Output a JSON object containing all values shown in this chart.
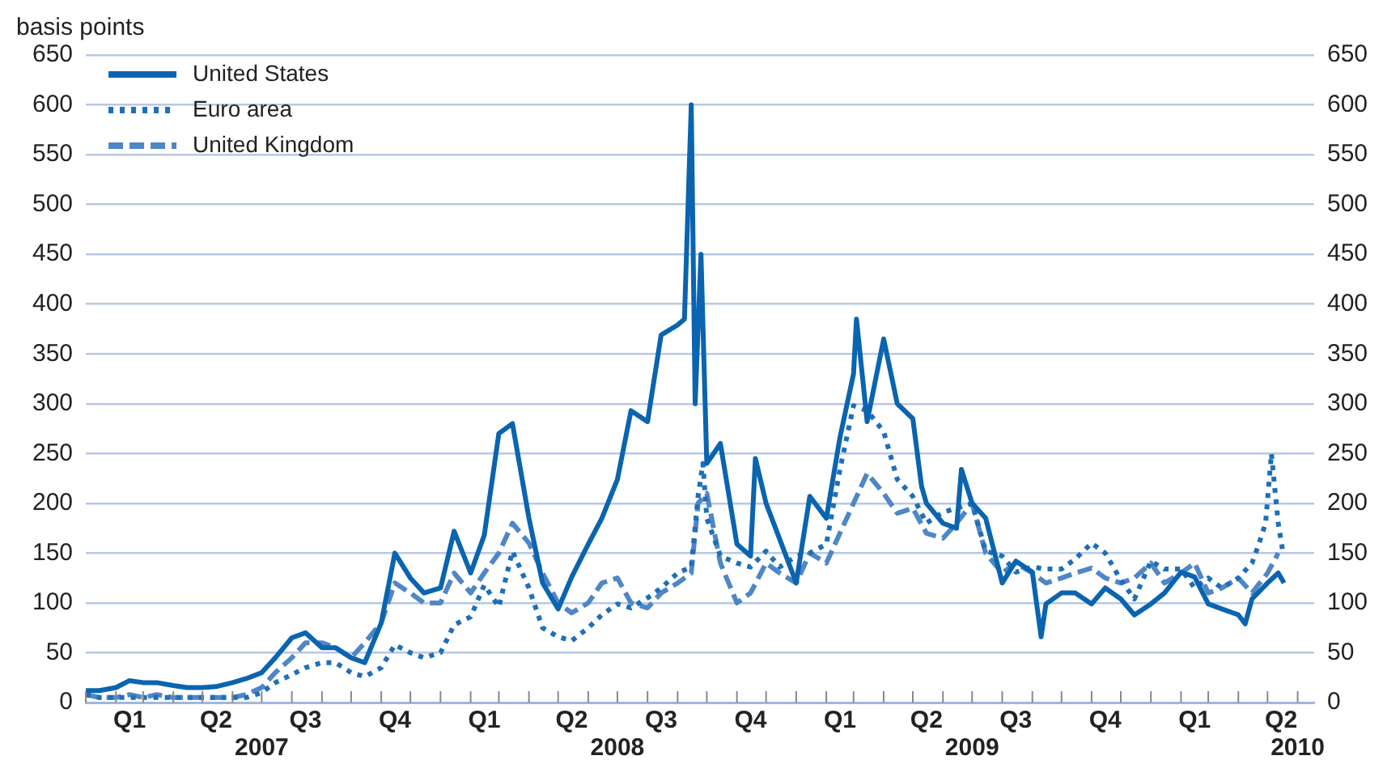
{
  "chart_data": {
    "type": "line",
    "ylabel": "basis points",
    "legend": "top left",
    "grid": "y",
    "xlim": [
      "2007-01-01",
      "2010-06-18"
    ],
    "xticks": [
      {
        "value": "2007-01-01",
        "label": null
      },
      {
        "value": "2007-02-01",
        "label": null
      },
      {
        "value": "2007-03-01",
        "label": null
      },
      {
        "value": "2007-04-01",
        "label": null
      },
      {
        "value": "2007-05-01",
        "label": null
      },
      {
        "value": "2007-06-01",
        "label": null
      },
      {
        "value": "2007-07-01",
        "label": null
      },
      {
        "value": "2007-08-01",
        "label": null
      },
      {
        "value": "2007-09-01",
        "label": null
      },
      {
        "value": "2007-10-01",
        "label": null
      },
      {
        "value": "2007-11-01",
        "label": null
      },
      {
        "value": "2007-12-01",
        "label": null
      },
      {
        "value": "2008-01-01",
        "label": null
      },
      {
        "value": "2008-02-01",
        "label": null
      },
      {
        "value": "2008-03-01",
        "label": null
      },
      {
        "value": "2008-04-01",
        "label": null
      },
      {
        "value": "2008-05-01",
        "label": null
      },
      {
        "value": "2008-06-01",
        "label": null
      },
      {
        "value": "2008-07-01",
        "label": null
      },
      {
        "value": "2008-08-01",
        "label": null
      },
      {
        "value": "2008-09-01",
        "label": null
      },
      {
        "value": "2008-10-01",
        "label": null
      },
      {
        "value": "2008-11-01",
        "label": null
      },
      {
        "value": "2008-12-01",
        "label": null
      },
      {
        "value": "2009-01-01",
        "label": null
      },
      {
        "value": "2009-02-01",
        "label": null
      },
      {
        "value": "2009-03-01",
        "label": null
      },
      {
        "value": "2009-04-01",
        "label": null
      },
      {
        "value": "2009-05-01",
        "label": null
      },
      {
        "value": "2009-06-01",
        "label": null
      },
      {
        "value": "2009-07-01",
        "label": null
      },
      {
        "value": "2009-08-01",
        "label": null
      },
      {
        "value": "2009-09-01",
        "label": null
      },
      {
        "value": "2009-10-01",
        "label": null
      },
      {
        "value": "2009-11-01",
        "label": null
      },
      {
        "value": "2009-12-01",
        "label": null
      },
      {
        "value": "2010-01-01",
        "label": null
      },
      {
        "value": "2010-02-01",
        "label": null
      },
      {
        "value": "2010-03-01",
        "label": null
      },
      {
        "value": "2010-04-01",
        "label": null
      },
      {
        "value": "2010-05-01",
        "label": null
      },
      {
        "value": "2010-06-01",
        "label": null
      },
      {
        "value": "2007-02-15",
        "label": "Q1"
      },
      {
        "value": "2007-05-15",
        "label": "Q2"
      },
      {
        "value": "2007-08-15",
        "label": "Q3"
      },
      {
        "value": "2007-11-15",
        "label": "Q4"
      },
      {
        "value": "2008-02-15",
        "label": "Q1"
      },
      {
        "value": "2008-05-15",
        "label": "Q2"
      },
      {
        "value": "2008-08-15",
        "label": "Q3"
      },
      {
        "value": "2008-11-15",
        "label": "Q4"
      },
      {
        "value": "2009-02-15",
        "label": "Q1"
      },
      {
        "value": "2009-05-15",
        "label": "Q2"
      },
      {
        "value": "2009-08-15",
        "label": "Q3"
      },
      {
        "value": "2009-11-15",
        "label": "Q4"
      },
      {
        "value": "2010-02-15",
        "label": "Q1"
      },
      {
        "value": "2010-05-15",
        "label": "Q2"
      }
    ],
    "x2lim": [
      "2007-01-01",
      "2010-06-18"
    ],
    "x2ticks": [
      {
        "value": "2007-07-01",
        "label": "2007"
      },
      {
        "value": "2008-07-01",
        "label": "2008"
      },
      {
        "value": "2009-07-01",
        "label": "2009"
      },
      {
        "value": "2010-06-01",
        "label": "2010"
      }
    ],
    "ylim": [
      0,
      650
    ],
    "yticks": [
      0,
      50,
      100,
      150,
      200,
      250,
      300,
      350,
      400,
      450,
      500,
      550,
      600,
      650
    ],
    "y2lim": [
      0,
      650
    ],
    "y2ticks": [
      0,
      50,
      100,
      150,
      200,
      250,
      300,
      350,
      400,
      450,
      500,
      550,
      600,
      650
    ],
    "series": [
      {
        "name": "United States",
        "color": "#0a64b0",
        "line_style": "solid",
        "x": [
          "2007-01-01",
          "2007-01-15",
          "2007-02-01",
          "2007-02-15",
          "2007-03-01",
          "2007-03-15",
          "2007-04-01",
          "2007-04-15",
          "2007-05-01",
          "2007-05-15",
          "2007-06-01",
          "2007-06-15",
          "2007-07-01",
          "2007-07-15",
          "2007-08-01",
          "2007-08-15",
          "2007-09-01",
          "2007-09-15",
          "2007-10-01",
          "2007-10-15",
          "2007-11-01",
          "2007-11-15",
          "2007-12-01",
          "2007-12-15",
          "2008-01-01",
          "2008-01-15",
          "2008-02-01",
          "2008-02-15",
          "2008-03-01",
          "2008-03-15",
          "2008-04-01",
          "2008-04-15",
          "2008-05-01",
          "2008-05-15",
          "2008-06-01",
          "2008-06-15",
          "2008-07-01",
          "2008-07-15",
          "2008-08-01",
          "2008-08-15",
          "2008-09-01",
          "2008-09-08",
          "2008-09-15",
          "2008-09-19",
          "2008-09-25",
          "2008-10-01",
          "2008-10-15",
          "2008-11-01",
          "2008-11-15",
          "2008-11-20",
          "2008-12-01",
          "2008-12-15",
          "2009-01-01",
          "2009-01-15",
          "2009-02-01",
          "2009-02-15",
          "2009-03-01",
          "2009-03-04",
          "2009-03-15",
          "2009-04-01",
          "2009-04-15",
          "2009-05-01",
          "2009-05-10",
          "2009-05-15",
          "2009-06-01",
          "2009-06-15",
          "2009-06-20",
          "2009-07-01",
          "2009-07-15",
          "2009-08-01",
          "2009-08-15",
          "2009-09-01",
          "2009-09-10",
          "2009-09-15",
          "2009-10-01",
          "2009-10-15",
          "2009-11-01",
          "2009-11-15",
          "2009-12-01",
          "2009-12-15",
          "2010-01-01",
          "2010-01-15",
          "2010-02-01",
          "2010-02-15",
          "2010-03-01",
          "2010-03-15",
          "2010-04-01",
          "2010-04-08",
          "2010-04-15",
          "2010-05-01",
          "2010-05-12",
          "2010-05-18"
        ],
        "values": [
          12,
          12,
          15,
          22,
          20,
          20,
          17,
          15,
          15,
          16,
          20,
          24,
          30,
          45,
          65,
          70,
          55,
          55,
          45,
          40,
          80,
          150,
          125,
          110,
          115,
          172,
          130,
          168,
          270,
          280,
          185,
          120,
          94,
          126,
          159,
          185,
          224,
          293,
          282,
          369,
          379,
          385,
          600,
          300,
          450,
          240,
          260,
          159,
          147,
          245,
          200,
          164,
          120,
          207,
          185,
          266,
          330,
          385,
          282,
          365,
          300,
          285,
          217,
          200,
          180,
          175,
          234,
          200,
          185,
          120,
          142,
          131,
          66,
          99,
          110,
          110,
          99,
          115,
          104,
          88,
          99,
          110,
          131,
          126,
          99,
          94,
          88,
          79,
          104,
          120,
          130,
          120
        ]
      },
      {
        "name": "Euro area",
        "color": "#1f6fb8",
        "line_style": "dotted",
        "x": [
          "2007-01-01",
          "2007-01-15",
          "2007-02-01",
          "2007-02-15",
          "2007-03-01",
          "2007-03-15",
          "2007-04-01",
          "2007-04-15",
          "2007-05-01",
          "2007-05-15",
          "2007-06-01",
          "2007-06-15",
          "2007-07-01",
          "2007-07-15",
          "2007-08-01",
          "2007-08-15",
          "2007-09-01",
          "2007-09-15",
          "2007-10-01",
          "2007-10-15",
          "2007-11-01",
          "2007-11-15",
          "2007-12-01",
          "2007-12-15",
          "2008-01-01",
          "2008-01-15",
          "2008-02-01",
          "2008-02-15",
          "2008-03-01",
          "2008-03-15",
          "2008-04-01",
          "2008-04-15",
          "2008-05-01",
          "2008-05-15",
          "2008-06-01",
          "2008-06-15",
          "2008-07-01",
          "2008-07-15",
          "2008-08-01",
          "2008-08-15",
          "2008-09-01",
          "2008-09-15",
          "2008-09-22",
          "2008-09-27",
          "2008-10-01",
          "2008-10-15",
          "2008-11-01",
          "2008-11-15",
          "2008-12-01",
          "2008-12-15",
          "2009-01-01",
          "2009-01-15",
          "2009-02-01",
          "2009-02-15",
          "2009-03-01",
          "2009-03-15",
          "2009-04-01",
          "2009-04-15",
          "2009-05-01",
          "2009-05-15",
          "2009-06-01",
          "2009-06-15",
          "2009-07-01",
          "2009-07-15",
          "2009-08-01",
          "2009-08-15",
          "2009-09-01",
          "2009-09-15",
          "2009-10-01",
          "2009-10-15",
          "2009-11-01",
          "2009-11-15",
          "2009-12-01",
          "2009-12-15",
          "2010-01-01",
          "2010-01-15",
          "2010-02-01",
          "2010-02-15",
          "2010-03-01",
          "2010-03-15",
          "2010-04-01",
          "2010-04-15",
          "2010-04-22",
          "2010-04-29",
          "2010-05-05",
          "2010-05-12",
          "2010-05-17"
        ],
        "values": [
          8,
          5,
          5,
          5,
          5,
          5,
          5,
          5,
          5,
          5,
          5,
          5,
          10,
          20,
          28,
          35,
          40,
          40,
          30,
          26,
          35,
          58,
          50,
          45,
          50,
          78,
          86,
          118,
          96,
          152,
          115,
          75,
          66,
          62,
          75,
          88,
          99,
          95,
          105,
          115,
          130,
          136,
          207,
          240,
          185,
          147,
          140,
          136,
          152,
          136,
          147,
          150,
          159,
          234,
          298,
          293,
          272,
          224,
          207,
          180,
          191,
          195,
          200,
          152,
          147,
          131,
          136,
          134,
          134,
          144,
          160,
          150,
          123,
          104,
          142,
          134,
          134,
          115,
          125,
          115,
          125,
          140,
          159,
          180,
          250,
          180,
          150
        ]
      },
      {
        "name": "United Kingdom",
        "color": "#4f86c6",
        "line_style": "dashed",
        "x": [
          "2007-01-01",
          "2007-01-15",
          "2007-02-01",
          "2007-02-15",
          "2007-03-01",
          "2007-03-15",
          "2007-04-01",
          "2007-04-15",
          "2007-05-01",
          "2007-05-15",
          "2007-06-01",
          "2007-06-15",
          "2007-07-01",
          "2007-07-15",
          "2007-08-01",
          "2007-08-15",
          "2007-09-01",
          "2007-09-15",
          "2007-10-01",
          "2007-10-15",
          "2007-11-01",
          "2007-11-15",
          "2007-12-01",
          "2007-12-15",
          "2008-01-01",
          "2008-01-15",
          "2008-02-01",
          "2008-02-15",
          "2008-03-01",
          "2008-03-15",
          "2008-04-01",
          "2008-04-15",
          "2008-05-01",
          "2008-05-15",
          "2008-06-01",
          "2008-06-15",
          "2008-07-01",
          "2008-07-15",
          "2008-08-01",
          "2008-08-15",
          "2008-09-01",
          "2008-09-15",
          "2008-09-22",
          "2008-10-01",
          "2008-10-15",
          "2008-11-01",
          "2008-11-15",
          "2008-12-01",
          "2008-12-15",
          "2009-01-01",
          "2009-01-15",
          "2009-02-01",
          "2009-02-15",
          "2009-03-01",
          "2009-03-15",
          "2009-04-01",
          "2009-04-15",
          "2009-05-01",
          "2009-05-15",
          "2009-06-01",
          "2009-06-15",
          "2009-07-01",
          "2009-07-15",
          "2009-08-01",
          "2009-08-15",
          "2009-09-01",
          "2009-09-15",
          "2009-10-01",
          "2009-10-15",
          "2009-11-01",
          "2009-11-15",
          "2009-12-01",
          "2009-12-15",
          "2010-01-01",
          "2010-01-15",
          "2010-02-01",
          "2010-02-15",
          "2010-03-01",
          "2010-03-15",
          "2010-04-01",
          "2010-04-15",
          "2010-05-01",
          "2010-05-12"
        ],
        "values": [
          8,
          5,
          5,
          8,
          5,
          8,
          5,
          5,
          5,
          5,
          5,
          8,
          15,
          30,
          45,
          60,
          60,
          55,
          45,
          60,
          80,
          120,
          110,
          100,
          100,
          130,
          110,
          130,
          150,
          180,
          160,
          130,
          100,
          90,
          100,
          120,
          125,
          100,
          95,
          110,
          120,
          130,
          200,
          210,
          140,
          100,
          110,
          140,
          130,
          120,
          150,
          140,
          170,
          200,
          230,
          210,
          190,
          195,
          170,
          165,
          180,
          200,
          150,
          130,
          140,
          130,
          120,
          125,
          130,
          135,
          125,
          120,
          125,
          140,
          120,
          130,
          140,
          110,
          115,
          125,
          110,
          130,
          150
        ]
      }
    ]
  }
}
